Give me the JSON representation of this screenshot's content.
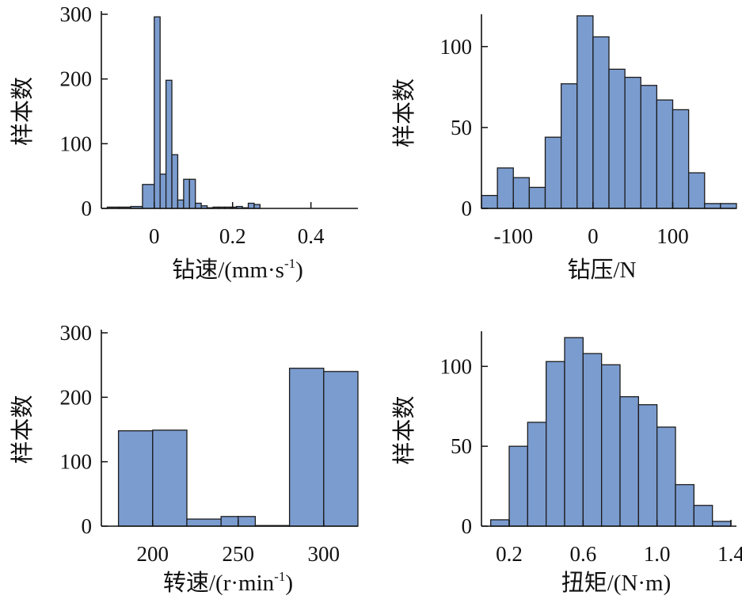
{
  "chart_data": [
    {
      "type": "bar",
      "xlabel": "钻速/(mm·s",
      "xlabel_unit_sup": "-1",
      "xlabel_close": ")",
      "ylabel": "样本数",
      "xlim": [
        -0.135,
        0.52
      ],
      "ylim": [
        0,
        300
      ],
      "xticks": [
        0,
        0.2,
        0.4
      ],
      "xtick_labels": [
        "0",
        "0.2",
        "0.4"
      ],
      "yticks": [
        0,
        100,
        200,
        300
      ],
      "ytick_labels": [
        "0",
        "100",
        "200",
        "300"
      ],
      "bins": [
        {
          "x0": -0.12,
          "x1": -0.09,
          "count": 2
        },
        {
          "x0": -0.09,
          "x1": -0.06,
          "count": 2
        },
        {
          "x0": -0.06,
          "x1": -0.03,
          "count": 3
        },
        {
          "x0": -0.03,
          "x1": 0.0,
          "count": 37
        },
        {
          "x0": 0.0,
          "x1": 0.015,
          "count": 296
        },
        {
          "x0": 0.015,
          "x1": 0.03,
          "count": 53
        },
        {
          "x0": 0.03,
          "x1": 0.045,
          "count": 198
        },
        {
          "x0": 0.045,
          "x1": 0.06,
          "count": 83
        },
        {
          "x0": 0.06,
          "x1": 0.075,
          "count": 13
        },
        {
          "x0": 0.075,
          "x1": 0.09,
          "count": 45
        },
        {
          "x0": 0.09,
          "x1": 0.105,
          "count": 45
        },
        {
          "x0": 0.105,
          "x1": 0.12,
          "count": 8
        },
        {
          "x0": 0.12,
          "x1": 0.135,
          "count": 4
        },
        {
          "x0": 0.135,
          "x1": 0.15,
          "count": 1
        },
        {
          "x0": 0.15,
          "x1": 0.165,
          "count": 2
        },
        {
          "x0": 0.165,
          "x1": 0.18,
          "count": 2
        },
        {
          "x0": 0.18,
          "x1": 0.195,
          "count": 2
        },
        {
          "x0": 0.195,
          "x1": 0.21,
          "count": 2
        },
        {
          "x0": 0.21,
          "x1": 0.225,
          "count": 3
        },
        {
          "x0": 0.225,
          "x1": 0.24,
          "count": 1
        },
        {
          "x0": 0.24,
          "x1": 0.255,
          "count": 8
        },
        {
          "x0": 0.255,
          "x1": 0.27,
          "count": 6
        }
      ]
    },
    {
      "type": "bar",
      "xlabel": "钻压/N",
      "ylabel": "样本数",
      "xlim": [
        -140,
        180
      ],
      "ylim": [
        0,
        118
      ],
      "xticks": [
        -100,
        0,
        100
      ],
      "xtick_labels": [
        "-100",
        "0",
        "100"
      ],
      "yticks": [
        0,
        50,
        100
      ],
      "ytick_labels": [
        "0",
        "50",
        "100"
      ],
      "bins": [
        {
          "x0": -140,
          "x1": -120,
          "count": 8
        },
        {
          "x0": -120,
          "x1": -100,
          "count": 25
        },
        {
          "x0": -100,
          "x1": -80,
          "count": 19
        },
        {
          "x0": -80,
          "x1": -60,
          "count": 13
        },
        {
          "x0": -60,
          "x1": -40,
          "count": 44
        },
        {
          "x0": -40,
          "x1": -20,
          "count": 77
        },
        {
          "x0": -20,
          "x1": 0,
          "count": 119
        },
        {
          "x0": 0,
          "x1": 20,
          "count": 106
        },
        {
          "x0": 20,
          "x1": 40,
          "count": 86
        },
        {
          "x0": 40,
          "x1": 60,
          "count": 81
        },
        {
          "x0": 60,
          "x1": 80,
          "count": 76
        },
        {
          "x0": 80,
          "x1": 100,
          "count": 67
        },
        {
          "x0": 100,
          "x1": 120,
          "count": 61
        },
        {
          "x0": 120,
          "x1": 140,
          "count": 22
        },
        {
          "x0": 140,
          "x1": 160,
          "count": 3
        },
        {
          "x0": 160,
          "x1": 180,
          "count": 3
        }
      ]
    },
    {
      "type": "bar",
      "xlabel": "转速/(r·min",
      "xlabel_unit_sup": "-1",
      "xlabel_close": ")",
      "ylabel": "样本数",
      "xlim": [
        170,
        320
      ],
      "ylim": [
        0,
        300
      ],
      "xticks": [
        200,
        250,
        300
      ],
      "xtick_labels": [
        "200",
        "250",
        "300"
      ],
      "yticks": [
        0,
        100,
        200,
        300
      ],
      "ytick_labels": [
        "0",
        "100",
        "200",
        "300"
      ],
      "bins": [
        {
          "x0": 180,
          "x1": 200,
          "count": 148
        },
        {
          "x0": 200,
          "x1": 220,
          "count": 149
        },
        {
          "x0": 220,
          "x1": 240,
          "count": 11
        },
        {
          "x0": 240,
          "x1": 250,
          "count": 15
        },
        {
          "x0": 250,
          "x1": 260,
          "count": 15
        },
        {
          "x0": 260,
          "x1": 280,
          "count": 1
        },
        {
          "x0": 280,
          "x1": 300,
          "count": 245
        },
        {
          "x0": 300,
          "x1": 320,
          "count": 240
        }
      ]
    },
    {
      "type": "bar",
      "xlabel": "扭矩/(N·m)",
      "ylabel": "样本数",
      "xlim": [
        0.05,
        1.43
      ],
      "ylim": [
        0,
        120
      ],
      "xticks": [
        0.2,
        0.6,
        1.0,
        1.4
      ],
      "xtick_labels": [
        "0.2",
        "0.6",
        "1.0",
        "1.4"
      ],
      "yticks": [
        0,
        50,
        100
      ],
      "ytick_labels": [
        "0",
        "50",
        "100"
      ],
      "bins": [
        {
          "x0": 0.1,
          "x1": 0.2,
          "count": 4
        },
        {
          "x0": 0.2,
          "x1": 0.3,
          "count": 50
        },
        {
          "x0": 0.3,
          "x1": 0.4,
          "count": 65
        },
        {
          "x0": 0.4,
          "x1": 0.5,
          "count": 103
        },
        {
          "x0": 0.5,
          "x1": 0.6,
          "count": 118
        },
        {
          "x0": 0.6,
          "x1": 0.7,
          "count": 108
        },
        {
          "x0": 0.7,
          "x1": 0.8,
          "count": 101
        },
        {
          "x0": 0.8,
          "x1": 0.9,
          "count": 81
        },
        {
          "x0": 0.9,
          "x1": 1.0,
          "count": 76
        },
        {
          "x0": 1.0,
          "x1": 1.1,
          "count": 62
        },
        {
          "x0": 1.1,
          "x1": 1.2,
          "count": 26
        },
        {
          "x0": 1.2,
          "x1": 1.3,
          "count": 13
        },
        {
          "x0": 1.3,
          "x1": 1.4,
          "count": 3
        }
      ]
    }
  ]
}
